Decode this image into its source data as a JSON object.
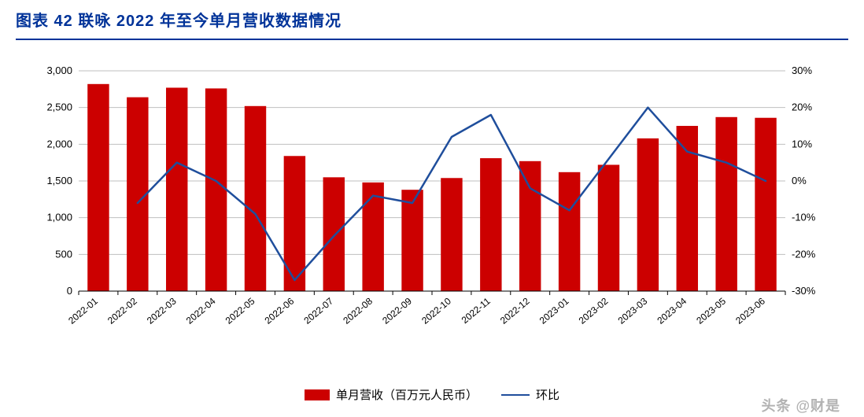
{
  "title": "图表 42    联咏 2022 年至今单月营收数据情况",
  "watermark": "头条 @财是",
  "chart": {
    "type": "bar+line",
    "background_color": "#ffffff",
    "plot_bg": "#ffffff",
    "grid_color": "#bfbfbf",
    "axis_color": "#000000",
    "tick_font_size": 13,
    "x_label_font_size": 12,
    "categories": [
      "2022-01",
      "2022-02",
      "2022-03",
      "2022-04",
      "2022-05",
      "2022-06",
      "2022-07",
      "2022-08",
      "2022-09",
      "2022-10",
      "2022-11",
      "2022-12",
      "2023-01",
      "2023-02",
      "2023-03",
      "2023-04",
      "2023-05",
      "2023-06"
    ],
    "bar_series": {
      "name": "单月营收（百万元人民币）",
      "color": "#cc0000",
      "values": [
        2820,
        2640,
        2770,
        2760,
        2520,
        1840,
        1550,
        1480,
        1380,
        1540,
        1810,
        1770,
        1620,
        1720,
        2080,
        2250,
        2370,
        2360
      ],
      "bar_width_ratio": 0.55
    },
    "line_series": {
      "name": "环比",
      "color": "#1f4e9c",
      "line_width": 2.5,
      "marker": "none",
      "values": [
        null,
        -6,
        5,
        0,
        -9,
        -27,
        -15,
        -4,
        -6,
        12,
        18,
        -2,
        -8,
        6,
        20,
        8,
        5,
        0
      ]
    },
    "y_left": {
      "min": 0,
      "max": 3000,
      "step": 500,
      "ticks": [
        "0",
        "500",
        "1,000",
        "1,500",
        "2,000",
        "2,500",
        "3,000"
      ]
    },
    "y_right": {
      "min": -30,
      "max": 30,
      "step": 10,
      "ticks": [
        "-30%",
        "-20%",
        "-10%",
        "0%",
        "10%",
        "20%",
        "30%"
      ]
    },
    "legend": {
      "bar_label": "单月营收（百万元人民币）",
      "line_label": "环比"
    }
  }
}
